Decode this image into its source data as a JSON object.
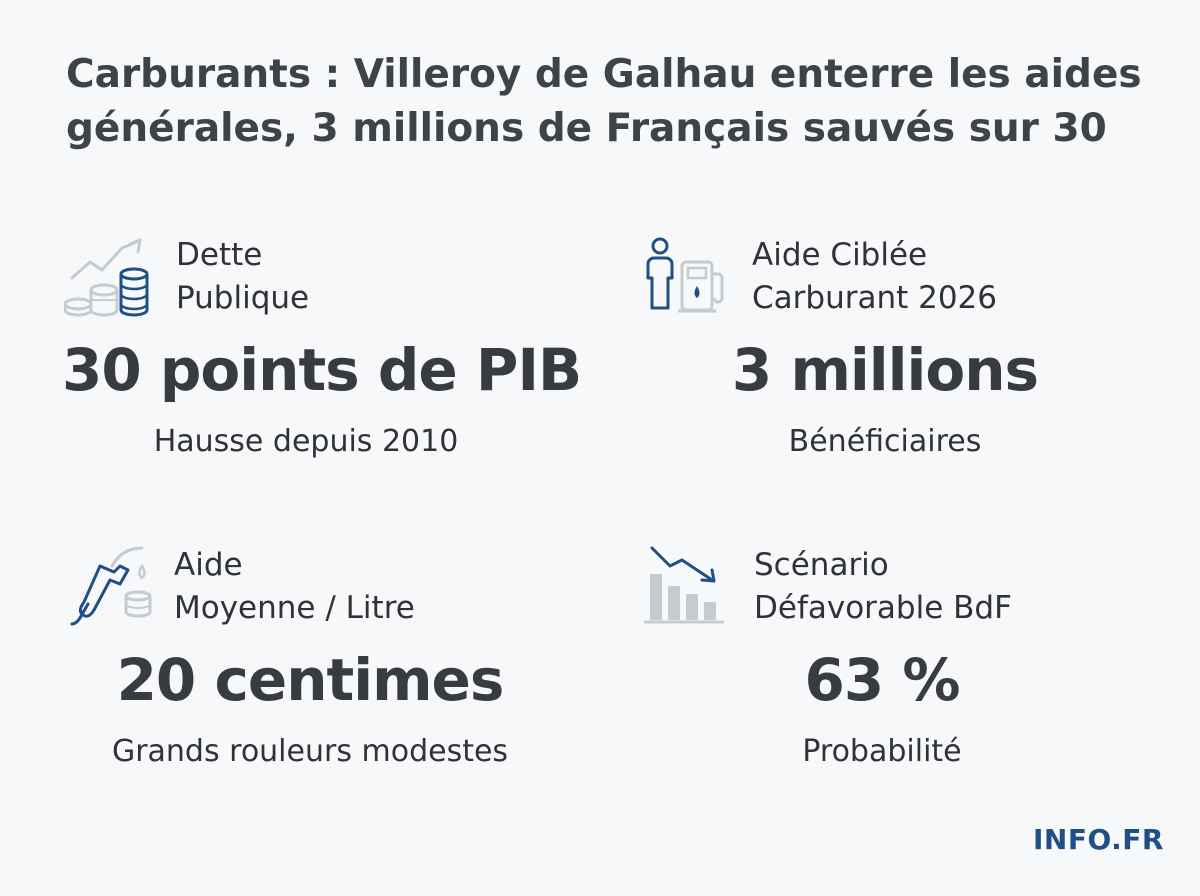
{
  "headline": "Carburants : Villeroy de Galhau enterre les aides générales, 3 millions de Français sauvés sur 30",
  "stats": [
    {
      "icon": "chart-coins-icon",
      "label_line1": "Dette",
      "label_line2": "Publique",
      "value": "30 points de PIB",
      "caption": "Hausse depuis 2010"
    },
    {
      "icon": "person-fuel-pump-icon",
      "label_line1": "Aide Ciblée",
      "label_line2": "Carburant 2026",
      "value": "3 millions",
      "caption": "Bénéficiaires"
    },
    {
      "icon": "fuel-nozzle-icon",
      "label_line1": "Aide",
      "label_line2": "Moyenne / Litre",
      "value": "20 centimes",
      "caption": "Grands rouleurs modestes"
    },
    {
      "icon": "declining-bar-chart-icon",
      "label_line1": "Scénario",
      "label_line2": "Défavorable BdF",
      "value": "63 %",
      "caption": "Probabilité"
    }
  ],
  "brand": "INFO.FR",
  "colors": {
    "accent_blue": "#1f4f86",
    "icon_gray": "#c6cbd1",
    "text_dark": "#3b3f45",
    "background": "#f7f8f9"
  }
}
